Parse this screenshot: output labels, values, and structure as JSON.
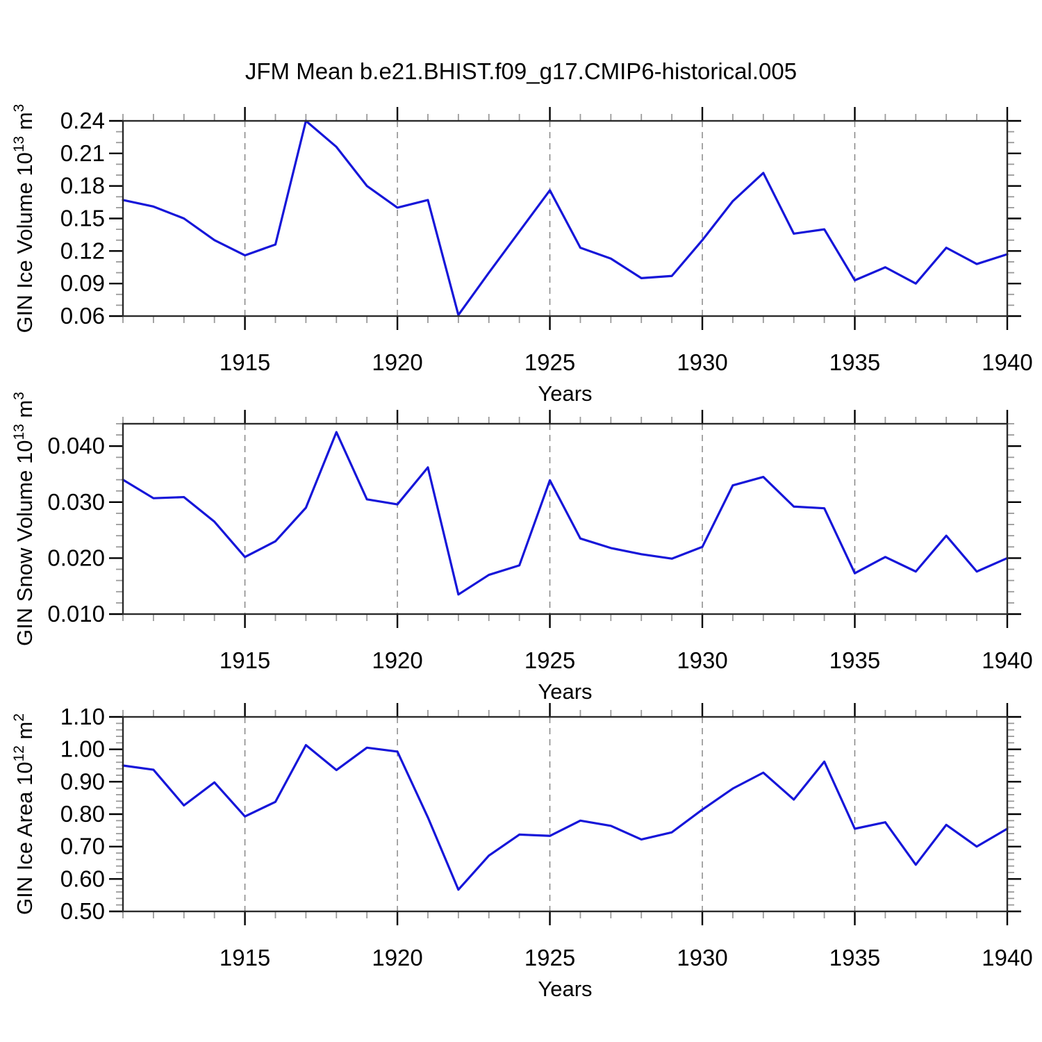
{
  "title": "JFM Mean b.e21.BHIST.f09_g17.CMIP6-historical.005",
  "colors": {
    "line": "#1616d9",
    "axis": "#2b2b2b",
    "major_tick": "#000000",
    "minor_tick": "#9a9a9a",
    "grid": "#808080",
    "text": "#000000"
  },
  "chart_data": [
    {
      "type": "line",
      "name": "gin-ice-volume",
      "ylabel": "GIN Ice Volume 10^13 m^3",
      "ylabel_parts": [
        {
          "t": "GIN Ice Volume 10"
        },
        {
          "t": "13",
          "sup": true
        },
        {
          "t": " m"
        },
        {
          "t": "3",
          "sup": true
        }
      ],
      "xlabel": "Years",
      "xlim": [
        1911,
        1940
      ],
      "ylim": [
        0.06,
        0.24
      ],
      "xticks": [
        1915,
        1920,
        1925,
        1930,
        1935,
        1940
      ],
      "grid_years": [
        1915,
        1920,
        1925,
        1930,
        1935
      ],
      "x_minor_step": 1,
      "y_minor_step": 0.01,
      "ytick_values": [
        0.06,
        0.09,
        0.12,
        0.15,
        0.18,
        0.21,
        0.24
      ],
      "ytick_labels": [
        "0.06",
        "0.09",
        "0.12",
        "0.15",
        "0.18",
        "0.21",
        "0.24"
      ],
      "x": [
        1911,
        1912,
        1913,
        1914,
        1915,
        1916,
        1917,
        1918,
        1919,
        1920,
        1921,
        1922,
        1923,
        1924,
        1925,
        1926,
        1927,
        1928,
        1929,
        1930,
        1931,
        1932,
        1933,
        1934,
        1935,
        1936,
        1937,
        1938,
        1939,
        1940
      ],
      "values": [
        0.167,
        0.161,
        0.15,
        0.13,
        0.116,
        0.126,
        0.24,
        0.216,
        0.18,
        0.16,
        0.167,
        0.061,
        0.1,
        0.138,
        0.176,
        0.123,
        0.113,
        0.095,
        0.097,
        0.13,
        0.166,
        0.192,
        0.136,
        0.14,
        0.093,
        0.105,
        0.09,
        0.123,
        0.108,
        0.117
      ]
    },
    {
      "type": "line",
      "name": "gin-snow-volume",
      "ylabel": "GIN Snow Volume 10^13 m^3",
      "ylabel_parts": [
        {
          "t": "GIN Snow Volume 10"
        },
        {
          "t": "13",
          "sup": true
        },
        {
          "t": " m"
        },
        {
          "t": "3",
          "sup": true
        }
      ],
      "xlabel": "Years",
      "xlim": [
        1911,
        1940
      ],
      "ylim": [
        0.01,
        0.044
      ],
      "xticks": [
        1915,
        1920,
        1925,
        1930,
        1935,
        1940
      ],
      "grid_years": [
        1915,
        1920,
        1925,
        1930,
        1935
      ],
      "x_minor_step": 1,
      "y_minor_step": 0.002,
      "ytick_values": [
        0.01,
        0.02,
        0.03,
        0.04
      ],
      "ytick_labels": [
        "0.010",
        "0.020",
        "0.030",
        "0.040"
      ],
      "x": [
        1911,
        1912,
        1913,
        1914,
        1915,
        1916,
        1917,
        1918,
        1919,
        1920,
        1921,
        1922,
        1923,
        1924,
        1925,
        1926,
        1927,
        1928,
        1929,
        1930,
        1931,
        1932,
        1933,
        1934,
        1935,
        1936,
        1937,
        1938,
        1939,
        1940
      ],
      "values": [
        0.034,
        0.0307,
        0.0309,
        0.0265,
        0.0202,
        0.023,
        0.029,
        0.0425,
        0.0305,
        0.0296,
        0.0362,
        0.0135,
        0.017,
        0.0187,
        0.0339,
        0.0235,
        0.0218,
        0.0207,
        0.0199,
        0.022,
        0.033,
        0.0345,
        0.0292,
        0.0289,
        0.0173,
        0.0202,
        0.0176,
        0.024,
        0.0176,
        0.02
      ]
    },
    {
      "type": "line",
      "name": "gin-ice-area",
      "ylabel": "GIN Ice Area 10^12 m^2",
      "ylabel_parts": [
        {
          "t": "GIN Ice Area 10"
        },
        {
          "t": "12",
          "sup": true
        },
        {
          "t": " m"
        },
        {
          "t": "2",
          "sup": true
        }
      ],
      "xlabel": "Years",
      "xlim": [
        1911,
        1940
      ],
      "ylim": [
        0.5,
        1.1
      ],
      "xticks": [
        1915,
        1920,
        1925,
        1930,
        1935,
        1940
      ],
      "grid_years": [
        1915,
        1920,
        1925,
        1930,
        1935
      ],
      "x_minor_step": 1,
      "y_minor_step": 0.02,
      "ytick_values": [
        0.5,
        0.6,
        0.7,
        0.8,
        0.9,
        1.0,
        1.1
      ],
      "ytick_labels": [
        "0.50",
        "0.60",
        "0.70",
        "0.80",
        "0.90",
        "1.00",
        "1.10"
      ],
      "x": [
        1911,
        1912,
        1913,
        1914,
        1915,
        1916,
        1917,
        1918,
        1919,
        1920,
        1921,
        1922,
        1923,
        1924,
        1925,
        1926,
        1927,
        1928,
        1929,
        1930,
        1931,
        1932,
        1933,
        1934,
        1935,
        1936,
        1937,
        1938,
        1939,
        1940
      ],
      "values": [
        0.95,
        0.937,
        0.827,
        0.898,
        0.793,
        0.838,
        1.013,
        0.936,
        1.005,
        0.993,
        0.79,
        0.567,
        0.672,
        0.737,
        0.733,
        0.78,
        0.764,
        0.722,
        0.744,
        0.814,
        0.879,
        0.928,
        0.845,
        0.962,
        0.755,
        0.775,
        0.644,
        0.767,
        0.7,
        0.755
      ]
    }
  ]
}
